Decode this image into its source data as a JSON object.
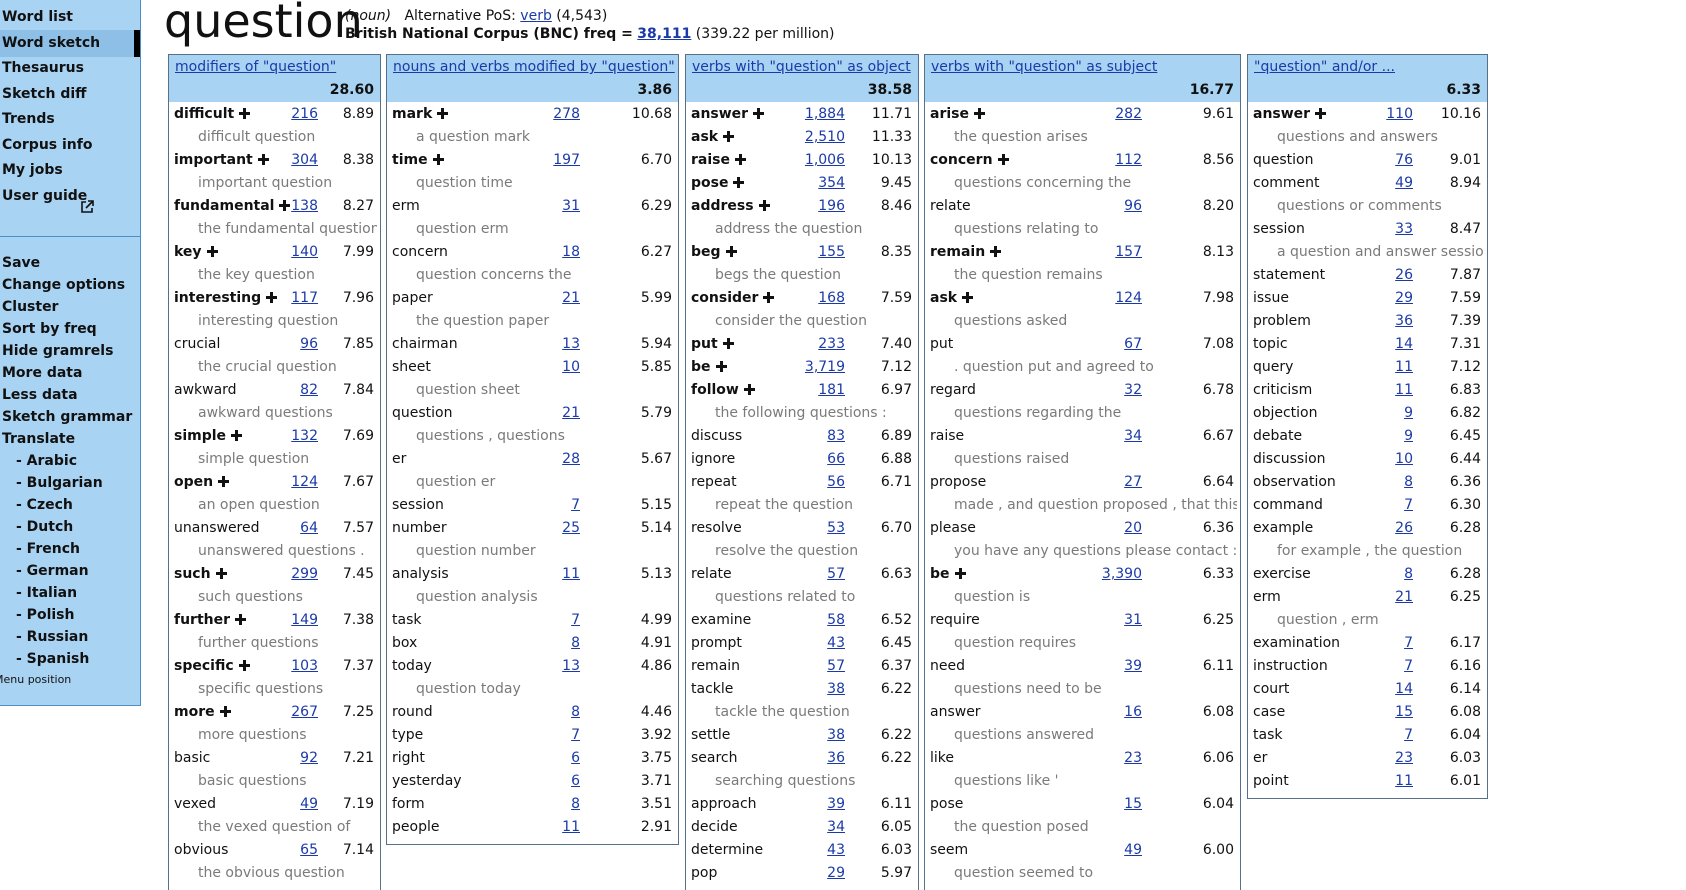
{
  "sidebar": {
    "menu": [
      "Word list",
      "Word sketch",
      "Thesaurus",
      "Sketch diff",
      "Trends",
      "Corpus info",
      "My jobs",
      "User guide"
    ],
    "selected": 1,
    "actions": [
      "Save",
      "Change options",
      "Cluster",
      "Sort by freq",
      "Hide gramrels",
      "More data",
      "Less data",
      "Sketch grammar",
      "Translate"
    ],
    "languages": [
      "- Arabic",
      "- Bulgarian",
      "- Czech",
      "- Dutch",
      "- French",
      "- German",
      "- Italian",
      "- Polish",
      "- Russian",
      "- Spanish"
    ],
    "menu_position": "Menu position"
  },
  "header": {
    "lemma": "question",
    "pos": "(noun)",
    "alt_pos_label": "Alternative PoS:",
    "alt_pos": "verb",
    "alt_pos_count": "(4,543)",
    "corpus_label": "British National Corpus (BNC) freq =",
    "freq": "38,111",
    "per_million": "(339.22 per million)"
  },
  "columns": [
    {
      "title": "modifiers of \"question\"",
      "score": "28.60",
      "rows": [
        {
          "word": "difficult",
          "expandable": true,
          "freq": "216",
          "score": "8.89",
          "example": "difficult question"
        },
        {
          "word": "important",
          "expandable": true,
          "freq": "304",
          "score": "8.38",
          "example": "important question"
        },
        {
          "word": "fundamental",
          "expandable": true,
          "freq": "138",
          "score": "8.27",
          "example": "the fundamental question"
        },
        {
          "word": "key",
          "expandable": true,
          "freq": "140",
          "score": "7.99",
          "example": "the key question"
        },
        {
          "word": "interesting",
          "expandable": true,
          "freq": "117",
          "score": "7.96",
          "example": "interesting question"
        },
        {
          "word": "crucial",
          "expandable": false,
          "freq": "96",
          "score": "7.85",
          "example": "the crucial question"
        },
        {
          "word": "awkward",
          "expandable": false,
          "freq": "82",
          "score": "7.84",
          "example": "awkward questions"
        },
        {
          "word": "simple",
          "expandable": true,
          "freq": "132",
          "score": "7.69",
          "example": "simple question"
        },
        {
          "word": "open",
          "expandable": true,
          "freq": "124",
          "score": "7.67",
          "example": "an open question"
        },
        {
          "word": "unanswered",
          "expandable": false,
          "freq": "64",
          "score": "7.57",
          "example": "unanswered questions ."
        },
        {
          "word": "such",
          "expandable": true,
          "freq": "299",
          "score": "7.45",
          "example": "such questions"
        },
        {
          "word": "further",
          "expandable": true,
          "freq": "149",
          "score": "7.38",
          "example": "further questions"
        },
        {
          "word": "specific",
          "expandable": true,
          "freq": "103",
          "score": "7.37",
          "example": "specific questions"
        },
        {
          "word": "more",
          "expandable": true,
          "freq": "267",
          "score": "7.25",
          "example": "more questions"
        },
        {
          "word": "basic",
          "expandable": false,
          "freq": "92",
          "score": "7.21",
          "example": "basic questions"
        },
        {
          "word": "vexed",
          "expandable": false,
          "freq": "49",
          "score": "7.19",
          "example": "the vexed question of"
        },
        {
          "word": "obvious",
          "expandable": false,
          "freq": "65",
          "score": "7.14",
          "example": "the obvious question"
        }
      ]
    },
    {
      "title": "nouns and verbs modified by \"question\"",
      "score": "3.86",
      "rows": [
        {
          "word": "mark",
          "expandable": true,
          "freq": "278",
          "score": "10.68",
          "example": "a question mark"
        },
        {
          "word": "time",
          "expandable": true,
          "freq": "197",
          "score": "6.70",
          "example": "question time"
        },
        {
          "word": "erm",
          "expandable": false,
          "freq": "31",
          "score": "6.29",
          "example": "question erm"
        },
        {
          "word": "concern",
          "expandable": false,
          "freq": "18",
          "score": "6.27",
          "example": "question concerns the"
        },
        {
          "word": "paper",
          "expandable": false,
          "freq": "21",
          "score": "5.99",
          "example": "the question paper"
        },
        {
          "word": "chairman",
          "expandable": false,
          "freq": "13",
          "score": "5.94"
        },
        {
          "word": "sheet",
          "expandable": false,
          "freq": "10",
          "score": "5.85",
          "example": "question sheet"
        },
        {
          "word": "question",
          "expandable": false,
          "freq": "21",
          "score": "5.79",
          "example": "questions , questions"
        },
        {
          "word": "er",
          "expandable": false,
          "freq": "28",
          "score": "5.67",
          "example": "question er"
        },
        {
          "word": "session",
          "expandable": false,
          "freq": "7",
          "score": "5.15"
        },
        {
          "word": "number",
          "expandable": false,
          "freq": "25",
          "score": "5.14",
          "example": "question number"
        },
        {
          "word": "analysis",
          "expandable": false,
          "freq": "11",
          "score": "5.13",
          "example": "question analysis"
        },
        {
          "word": "task",
          "expandable": false,
          "freq": "7",
          "score": "4.99"
        },
        {
          "word": "box",
          "expandable": false,
          "freq": "8",
          "score": "4.91"
        },
        {
          "word": "today",
          "expandable": false,
          "freq": "13",
          "score": "4.86",
          "example": "question today"
        },
        {
          "word": "round",
          "expandable": false,
          "freq": "8",
          "score": "4.46"
        },
        {
          "word": "type",
          "expandable": false,
          "freq": "7",
          "score": "3.92"
        },
        {
          "word": "right",
          "expandable": false,
          "freq": "6",
          "score": "3.75"
        },
        {
          "word": "yesterday",
          "expandable": false,
          "freq": "6",
          "score": "3.71"
        },
        {
          "word": "form",
          "expandable": false,
          "freq": "8",
          "score": "3.51"
        },
        {
          "word": "people",
          "expandable": false,
          "freq": "11",
          "score": "2.91"
        }
      ]
    },
    {
      "title": "verbs with \"question\" as object",
      "score": "38.58",
      "rows": [
        {
          "word": "answer",
          "expandable": true,
          "freq": "1,884",
          "score": "11.71"
        },
        {
          "word": "ask",
          "expandable": true,
          "freq": "2,510",
          "score": "11.33"
        },
        {
          "word": "raise",
          "expandable": true,
          "freq": "1,006",
          "score": "10.13"
        },
        {
          "word": "pose",
          "expandable": true,
          "freq": "354",
          "score": "9.45"
        },
        {
          "word": "address",
          "expandable": true,
          "freq": "196",
          "score": "8.46",
          "example": "address the question"
        },
        {
          "word": "beg",
          "expandable": true,
          "freq": "155",
          "score": "8.35",
          "example": "begs the question"
        },
        {
          "word": "consider",
          "expandable": true,
          "freq": "168",
          "score": "7.59",
          "example": "consider the question"
        },
        {
          "word": "put",
          "expandable": true,
          "freq": "233",
          "score": "7.40"
        },
        {
          "word": "be",
          "expandable": true,
          "freq": "3,719",
          "score": "7.12"
        },
        {
          "word": "follow",
          "expandable": true,
          "freq": "181",
          "score": "6.97",
          "example": "the following questions :"
        },
        {
          "word": "discuss",
          "expandable": false,
          "freq": "83",
          "score": "6.89"
        },
        {
          "word": "ignore",
          "expandable": false,
          "freq": "66",
          "score": "6.88"
        },
        {
          "word": "repeat",
          "expandable": false,
          "freq": "56",
          "score": "6.71",
          "example": "repeat the question"
        },
        {
          "word": "resolve",
          "expandable": false,
          "freq": "53",
          "score": "6.70",
          "example": "resolve the question"
        },
        {
          "word": "relate",
          "expandable": false,
          "freq": "57",
          "score": "6.63",
          "example": "questions related to"
        },
        {
          "word": "examine",
          "expandable": false,
          "freq": "58",
          "score": "6.52"
        },
        {
          "word": "prompt",
          "expandable": false,
          "freq": "43",
          "score": "6.45"
        },
        {
          "word": "remain",
          "expandable": false,
          "freq": "57",
          "score": "6.37"
        },
        {
          "word": "tackle",
          "expandable": false,
          "freq": "38",
          "score": "6.22",
          "example": "tackle the question"
        },
        {
          "word": "settle",
          "expandable": false,
          "freq": "38",
          "score": "6.22"
        },
        {
          "word": "search",
          "expandable": false,
          "freq": "36",
          "score": "6.22",
          "example": "searching questions"
        },
        {
          "word": "approach",
          "expandable": false,
          "freq": "39",
          "score": "6.11"
        },
        {
          "word": "decide",
          "expandable": false,
          "freq": "34",
          "score": "6.05"
        },
        {
          "word": "determine",
          "expandable": false,
          "freq": "43",
          "score": "6.03"
        },
        {
          "word": "pop",
          "expandable": false,
          "freq": "29",
          "score": "5.97"
        }
      ]
    },
    {
      "title": "verbs with \"question\" as subject",
      "score": "16.77",
      "rows": [
        {
          "word": "arise",
          "expandable": true,
          "freq": "282",
          "score": "9.61",
          "example": "the question arises"
        },
        {
          "word": "concern",
          "expandable": true,
          "freq": "112",
          "score": "8.56",
          "example": "questions concerning the"
        },
        {
          "word": "relate",
          "expandable": false,
          "freq": "96",
          "score": "8.20",
          "example": "questions relating to"
        },
        {
          "word": "remain",
          "expandable": true,
          "freq": "157",
          "score": "8.13",
          "example": "the question remains"
        },
        {
          "word": "ask",
          "expandable": true,
          "freq": "124",
          "score": "7.98",
          "example": "questions asked"
        },
        {
          "word": "put",
          "expandable": false,
          "freq": "67",
          "score": "7.08",
          "example": ". question put and agreed to"
        },
        {
          "word": "regard",
          "expandable": false,
          "freq": "32",
          "score": "6.78",
          "example": "questions regarding the"
        },
        {
          "word": "raise",
          "expandable": false,
          "freq": "34",
          "score": "6.67",
          "example": "questions raised"
        },
        {
          "word": "propose",
          "expandable": false,
          "freq": "27",
          "score": "6.64",
          "example": "made , and question proposed , that this"
        },
        {
          "word": "please",
          "expandable": false,
          "freq": "20",
          "score": "6.36",
          "example": "you have any questions please contact : ("
        },
        {
          "word": "be",
          "expandable": true,
          "freq": "3,390",
          "score": "6.33",
          "example": "question is"
        },
        {
          "word": "require",
          "expandable": false,
          "freq": "31",
          "score": "6.25",
          "example": "question requires"
        },
        {
          "word": "need",
          "expandable": false,
          "freq": "39",
          "score": "6.11",
          "example": "questions need to be"
        },
        {
          "word": "answer",
          "expandable": false,
          "freq": "16",
          "score": "6.08",
          "example": "questions answered"
        },
        {
          "word": "like",
          "expandable": false,
          "freq": "23",
          "score": "6.06",
          "example": "questions like '"
        },
        {
          "word": "pose",
          "expandable": false,
          "freq": "15",
          "score": "6.04",
          "example": "the question posed"
        },
        {
          "word": "seem",
          "expandable": false,
          "freq": "49",
          "score": "6.00",
          "example": "question seemed to"
        }
      ]
    },
    {
      "title": "\"question\" and/or ...",
      "score": "6.33",
      "rows": [
        {
          "word": "answer",
          "expandable": true,
          "freq": "110",
          "score": "10.16",
          "example": "questions and answers"
        },
        {
          "word": "question",
          "expandable": false,
          "freq": "76",
          "score": "9.01"
        },
        {
          "word": "comment",
          "expandable": false,
          "freq": "49",
          "score": "8.94",
          "example": "questions or comments"
        },
        {
          "word": "session",
          "expandable": false,
          "freq": "33",
          "score": "8.47",
          "example": "a question and answer session"
        },
        {
          "word": "statement",
          "expandable": false,
          "freq": "26",
          "score": "7.87"
        },
        {
          "word": "issue",
          "expandable": false,
          "freq": "29",
          "score": "7.59"
        },
        {
          "word": "problem",
          "expandable": false,
          "freq": "36",
          "score": "7.39"
        },
        {
          "word": "topic",
          "expandable": false,
          "freq": "14",
          "score": "7.31"
        },
        {
          "word": "query",
          "expandable": false,
          "freq": "11",
          "score": "7.12"
        },
        {
          "word": "criticism",
          "expandable": false,
          "freq": "11",
          "score": "6.83"
        },
        {
          "word": "objection",
          "expandable": false,
          "freq": "9",
          "score": "6.82"
        },
        {
          "word": "debate",
          "expandable": false,
          "freq": "9",
          "score": "6.45"
        },
        {
          "word": "discussion",
          "expandable": false,
          "freq": "10",
          "score": "6.44"
        },
        {
          "word": "observation",
          "expandable": false,
          "freq": "8",
          "score": "6.36"
        },
        {
          "word": "command",
          "expandable": false,
          "freq": "7",
          "score": "6.30"
        },
        {
          "word": "example",
          "expandable": false,
          "freq": "26",
          "score": "6.28",
          "example": "for example , the question"
        },
        {
          "word": "exercise",
          "expandable": false,
          "freq": "8",
          "score": "6.28"
        },
        {
          "word": "erm",
          "expandable": false,
          "freq": "21",
          "score": "6.25",
          "example": "question , erm"
        },
        {
          "word": "examination",
          "expandable": false,
          "freq": "7",
          "score": "6.17"
        },
        {
          "word": "instruction",
          "expandable": false,
          "freq": "7",
          "score": "6.16"
        },
        {
          "word": "court",
          "expandable": false,
          "freq": "14",
          "score": "6.14"
        },
        {
          "word": "case",
          "expandable": false,
          "freq": "15",
          "score": "6.08"
        },
        {
          "word": "task",
          "expandable": false,
          "freq": "7",
          "score": "6.04"
        },
        {
          "word": "er",
          "expandable": false,
          "freq": "23",
          "score": "6.03"
        },
        {
          "word": "point",
          "expandable": false,
          "freq": "11",
          "score": "6.01"
        }
      ]
    }
  ]
}
